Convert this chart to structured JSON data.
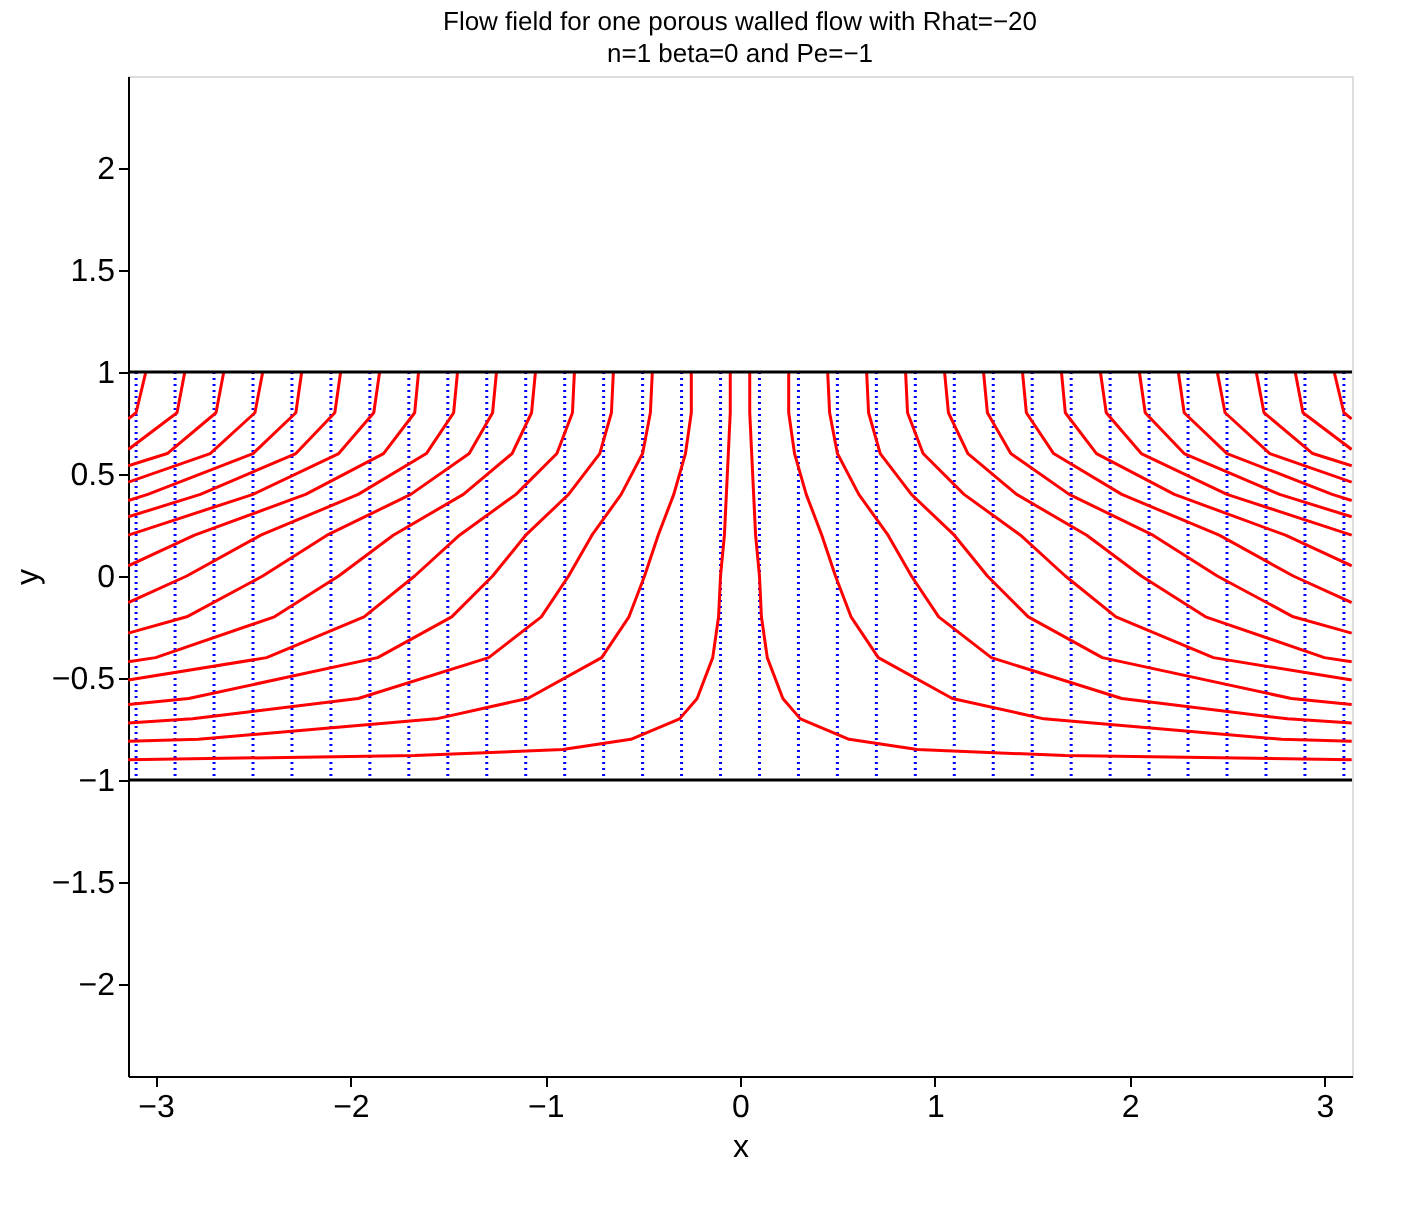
{
  "chart_data": {
    "type": "line",
    "title": "Flow field for one porous walled flow with Rhat=−20",
    "subtitle": "n=1 beta=0 and Pe=−1",
    "xlabel": "x",
    "ylabel": "y",
    "xlim": [
      -3.1416,
      3.1416
    ],
    "ylim": [
      -2.45,
      2.45
    ],
    "xticks": [
      -3,
      -2,
      -1,
      0,
      1,
      2,
      3
    ],
    "yticks": [
      -2,
      -1.5,
      -1,
      -0.5,
      0,
      0.5,
      1,
      1.5,
      2
    ],
    "series": [
      {
        "color": "#0000ff",
        "line_style": "dotted",
        "x": [
          -3.1,
          -3.1
        ],
        "values": [
          1,
          -1
        ]
      },
      {
        "color": "#0000ff",
        "line_style": "dotted",
        "x": [
          -2.9,
          -2.9
        ],
        "values": [
          1,
          -1
        ]
      },
      {
        "color": "#0000ff",
        "line_style": "dotted",
        "x": [
          -2.7,
          -2.7
        ],
        "values": [
          1,
          -1
        ]
      },
      {
        "color": "#0000ff",
        "line_style": "dotted",
        "x": [
          -2.5,
          -2.5
        ],
        "values": [
          1,
          -1
        ]
      },
      {
        "color": "#0000ff",
        "line_style": "dotted",
        "x": [
          -2.3,
          -2.3
        ],
        "values": [
          1,
          -1
        ]
      },
      {
        "color": "#0000ff",
        "line_style": "dotted",
        "x": [
          -2.1,
          -2.1
        ],
        "values": [
          1,
          -1
        ]
      },
      {
        "color": "#0000ff",
        "line_style": "dotted",
        "x": [
          -1.9,
          -1.9
        ],
        "values": [
          1,
          -1
        ]
      },
      {
        "color": "#0000ff",
        "line_style": "dotted",
        "x": [
          -1.7,
          -1.7
        ],
        "values": [
          1,
          -1
        ]
      },
      {
        "color": "#0000ff",
        "line_style": "dotted",
        "x": [
          -1.5,
          -1.5
        ],
        "values": [
          1,
          -1
        ]
      },
      {
        "color": "#0000ff",
        "line_style": "dotted",
        "x": [
          -1.3,
          -1.3
        ],
        "values": [
          1,
          -1
        ]
      },
      {
        "color": "#0000ff",
        "line_style": "dotted",
        "x": [
          -1.1,
          -1.1
        ],
        "values": [
          1,
          -1
        ]
      },
      {
        "color": "#0000ff",
        "line_style": "dotted",
        "x": [
          -0.9,
          -0.9
        ],
        "values": [
          1,
          -1
        ]
      },
      {
        "color": "#0000ff",
        "line_style": "dotted",
        "x": [
          -0.7,
          -0.7
        ],
        "values": [
          1,
          -1
        ]
      },
      {
        "color": "#0000ff",
        "line_style": "dotted",
        "x": [
          -0.5,
          -0.5
        ],
        "values": [
          1,
          -1
        ]
      },
      {
        "color": "#0000ff",
        "line_style": "dotted",
        "x": [
          -0.3,
          -0.3
        ],
        "values": [
          1,
          -1
        ]
      },
      {
        "color": "#0000ff",
        "line_style": "dotted",
        "x": [
          -0.1,
          -0.1
        ],
        "values": [
          1,
          -1
        ]
      },
      {
        "color": "#0000ff",
        "line_style": "dotted",
        "x": [
          0.1,
          0.1
        ],
        "values": [
          1,
          -1
        ]
      },
      {
        "color": "#0000ff",
        "line_style": "dotted",
        "x": [
          0.3,
          0.3
        ],
        "values": [
          1,
          -1
        ]
      },
      {
        "color": "#0000ff",
        "line_style": "dotted",
        "x": [
          0.5,
          0.5
        ],
        "values": [
          1,
          -1
        ]
      },
      {
        "color": "#0000ff",
        "line_style": "dotted",
        "x": [
          0.7,
          0.7
        ],
        "values": [
          1,
          -1
        ]
      },
      {
        "color": "#0000ff",
        "line_style": "dotted",
        "x": [
          0.9,
          0.9
        ],
        "values": [
          1,
          -1
        ]
      },
      {
        "color": "#0000ff",
        "line_style": "dotted",
        "x": [
          1.1,
          1.1
        ],
        "values": [
          1,
          -1
        ]
      },
      {
        "color": "#0000ff",
        "line_style": "dotted",
        "x": [
          1.3,
          1.3
        ],
        "values": [
          1,
          -1
        ]
      },
      {
        "color": "#0000ff",
        "line_style": "dotted",
        "x": [
          1.5,
          1.5
        ],
        "values": [
          1,
          -1
        ]
      },
      {
        "color": "#0000ff",
        "line_style": "dotted",
        "x": [
          1.7,
          1.7
        ],
        "values": [
          1,
          -1
        ]
      },
      {
        "color": "#0000ff",
        "line_style": "dotted",
        "x": [
          1.9,
          1.9
        ],
        "values": [
          1,
          -1
        ]
      },
      {
        "color": "#0000ff",
        "line_style": "dotted",
        "x": [
          2.1,
          2.1
        ],
        "values": [
          1,
          -1
        ]
      },
      {
        "color": "#0000ff",
        "line_style": "dotted",
        "x": [
          2.3,
          2.3
        ],
        "values": [
          1,
          -1
        ]
      },
      {
        "color": "#0000ff",
        "line_style": "dotted",
        "x": [
          2.5,
          2.5
        ],
        "values": [
          1,
          -1
        ]
      },
      {
        "color": "#0000ff",
        "line_style": "dotted",
        "x": [
          2.7,
          2.7
        ],
        "values": [
          1,
          -1
        ]
      },
      {
        "color": "#0000ff",
        "line_style": "dotted",
        "x": [
          2.9,
          2.9
        ],
        "values": [
          1,
          -1
        ]
      },
      {
        "color": "#0000ff",
        "line_style": "dotted",
        "x": [
          3.1,
          3.1
        ],
        "values": [
          1,
          -1
        ]
      },
      {
        "color": "#ff0000",
        "line_style": "solid",
        "x": [
          0.05,
          0.05,
          0.06,
          0.07,
          0.08,
          0.1,
          0.11,
          0.14,
          0.22,
          0.31,
          0.56,
          0.91,
          1.67,
          3.14
        ],
        "values": [
          1,
          0.8,
          0.6,
          0.4,
          0.2,
          0,
          -0.2,
          -0.4,
          -0.6,
          -0.7,
          -0.8,
          -0.85,
          -0.88,
          -0.9
        ]
      },
      {
        "color": "#ff0000",
        "line_style": "solid",
        "x": [
          0.25,
          0.25,
          0.28,
          0.34,
          0.42,
          0.49,
          0.57,
          0.71,
          1.09,
          1.56,
          2.78,
          3.14
        ],
        "values": [
          1,
          0.8,
          0.6,
          0.4,
          0.2,
          0,
          -0.2,
          -0.4,
          -0.6,
          -0.7,
          -0.8,
          -0.81
        ]
      },
      {
        "color": "#ff0000",
        "line_style": "solid",
        "x": [
          0.45,
          0.46,
          0.5,
          0.61,
          0.76,
          0.88,
          1.02,
          1.29,
          1.96,
          2.81,
          3.14
        ],
        "values": [
          1,
          0.8,
          0.6,
          0.4,
          0.2,
          0,
          -0.2,
          -0.4,
          -0.6,
          -0.7,
          -0.72
        ]
      },
      {
        "color": "#ff0000",
        "line_style": "solid",
        "x": [
          0.65,
          0.66,
          0.72,
          0.88,
          1.1,
          1.27,
          1.48,
          1.86,
          2.83,
          3.14
        ],
        "values": [
          1,
          0.8,
          0.6,
          0.4,
          0.2,
          0,
          -0.2,
          -0.4,
          -0.6,
          -0.63
        ]
      },
      {
        "color": "#ff0000",
        "line_style": "solid",
        "x": [
          0.85,
          0.86,
          0.94,
          1.15,
          1.44,
          1.67,
          1.93,
          2.43,
          3.14
        ],
        "values": [
          1,
          0.8,
          0.6,
          0.4,
          0.2,
          0,
          -0.2,
          -0.4,
          -0.51
        ]
      },
      {
        "color": "#ff0000",
        "line_style": "solid",
        "x": [
          1.05,
          1.07,
          1.17,
          1.42,
          1.78,
          2.06,
          2.39,
          3.0,
          3.14
        ],
        "values": [
          1,
          0.8,
          0.6,
          0.4,
          0.2,
          0,
          -0.2,
          -0.4,
          -0.42
        ]
      },
      {
        "color": "#ff0000",
        "line_style": "solid",
        "x": [
          1.25,
          1.27,
          1.39,
          1.69,
          2.12,
          2.45,
          2.84,
          3.14
        ],
        "values": [
          1,
          0.8,
          0.6,
          0.4,
          0.2,
          0,
          -0.2,
          -0.28
        ]
      },
      {
        "color": "#ff0000",
        "line_style": "solid",
        "x": [
          1.45,
          1.47,
          1.61,
          1.96,
          2.46,
          2.84,
          3.14
        ],
        "values": [
          1,
          0.8,
          0.6,
          0.4,
          0.2,
          0,
          -0.13
        ]
      },
      {
        "color": "#ff0000",
        "line_style": "solid",
        "x": [
          1.65,
          1.67,
          1.83,
          2.23,
          2.8,
          3.14
        ],
        "values": [
          1,
          0.8,
          0.6,
          0.4,
          0.2,
          0.05
        ]
      },
      {
        "color": "#ff0000",
        "line_style": "solid",
        "x": [
          1.85,
          1.88,
          2.06,
          2.5,
          3.14
        ],
        "values": [
          1,
          0.8,
          0.6,
          0.4,
          0.2
        ]
      },
      {
        "color": "#ff0000",
        "line_style": "solid",
        "x": [
          2.05,
          2.08,
          2.28,
          2.77,
          3.14
        ],
        "values": [
          1,
          0.8,
          0.6,
          0.4,
          0.29
        ]
      },
      {
        "color": "#ff0000",
        "line_style": "solid",
        "x": [
          2.25,
          2.28,
          2.5,
          3.04,
          3.14
        ],
        "values": [
          1,
          0.8,
          0.6,
          0.4,
          0.37
        ]
      },
      {
        "color": "#ff0000",
        "line_style": "solid",
        "x": [
          2.45,
          2.49,
          2.72,
          3.14
        ],
        "values": [
          1,
          0.8,
          0.6,
          0.46
        ]
      },
      {
        "color": "#ff0000",
        "line_style": "solid",
        "x": [
          2.65,
          2.69,
          2.94,
          3.14
        ],
        "values": [
          1,
          0.8,
          0.6,
          0.54
        ]
      },
      {
        "color": "#ff0000",
        "line_style": "solid",
        "x": [
          2.85,
          2.89,
          3.14
        ],
        "values": [
          1,
          0.8,
          0.62
        ]
      },
      {
        "color": "#ff0000",
        "line_style": "solid",
        "x": [
          3.05,
          3.1,
          3.14
        ],
        "values": [
          1,
          0.8,
          0.77
        ]
      },
      {
        "color": "#ff0000",
        "line_style": "solid",
        "x": [
          -0.05,
          -0.05,
          -0.06,
          -0.07,
          -0.08,
          -0.1,
          -0.11,
          -0.14,
          -0.22,
          -0.31,
          -0.56,
          -0.91,
          -1.67,
          -3.14
        ],
        "values": [
          1,
          0.8,
          0.6,
          0.4,
          0.2,
          0,
          -0.2,
          -0.4,
          -0.6,
          -0.7,
          -0.8,
          -0.85,
          -0.88,
          -0.9
        ]
      },
      {
        "color": "#ff0000",
        "line_style": "solid",
        "x": [
          -0.25,
          -0.25,
          -0.28,
          -0.34,
          -0.42,
          -0.49,
          -0.57,
          -0.71,
          -1.09,
          -1.56,
          -2.78,
          -3.14
        ],
        "values": [
          1,
          0.8,
          0.6,
          0.4,
          0.2,
          0,
          -0.2,
          -0.4,
          -0.6,
          -0.7,
          -0.8,
          -0.81
        ]
      },
      {
        "color": "#ff0000",
        "line_style": "solid",
        "x": [
          -0.45,
          -0.46,
          -0.5,
          -0.61,
          -0.76,
          -0.88,
          -1.02,
          -1.29,
          -1.96,
          -2.81,
          -3.14
        ],
        "values": [
          1,
          0.8,
          0.6,
          0.4,
          0.2,
          0,
          -0.2,
          -0.4,
          -0.6,
          -0.7,
          -0.72
        ]
      },
      {
        "color": "#ff0000",
        "line_style": "solid",
        "x": [
          -0.65,
          -0.66,
          -0.72,
          -0.88,
          -1.1,
          -1.27,
          -1.48,
          -1.86,
          -2.83,
          -3.14
        ],
        "values": [
          1,
          0.8,
          0.6,
          0.4,
          0.2,
          0,
          -0.2,
          -0.4,
          -0.6,
          -0.63
        ]
      },
      {
        "color": "#ff0000",
        "line_style": "solid",
        "x": [
          -0.85,
          -0.86,
          -0.94,
          -1.15,
          -1.44,
          -1.67,
          -1.93,
          -2.43,
          -3.14
        ],
        "values": [
          1,
          0.8,
          0.6,
          0.4,
          0.2,
          0,
          -0.2,
          -0.4,
          -0.51
        ]
      },
      {
        "color": "#ff0000",
        "line_style": "solid",
        "x": [
          -1.05,
          -1.07,
          -1.17,
          -1.42,
          -1.78,
          -2.06,
          -2.39,
          -3.0,
          -3.14
        ],
        "values": [
          1,
          0.8,
          0.6,
          0.4,
          0.2,
          0,
          -0.2,
          -0.4,
          -0.42
        ]
      },
      {
        "color": "#ff0000",
        "line_style": "solid",
        "x": [
          -1.25,
          -1.27,
          -1.39,
          -1.69,
          -2.12,
          -2.45,
          -2.84,
          -3.14
        ],
        "values": [
          1,
          0.8,
          0.6,
          0.4,
          0.2,
          0,
          -0.2,
          -0.28
        ]
      },
      {
        "color": "#ff0000",
        "line_style": "solid",
        "x": [
          -1.45,
          -1.47,
          -1.61,
          -1.96,
          -2.46,
          -2.84,
          -3.14
        ],
        "values": [
          1,
          0.8,
          0.6,
          0.4,
          0.2,
          0,
          -0.13
        ]
      },
      {
        "color": "#ff0000",
        "line_style": "solid",
        "x": [
          -1.65,
          -1.67,
          -1.83,
          -2.23,
          -2.8,
          -3.14
        ],
        "values": [
          1,
          0.8,
          0.6,
          0.4,
          0.2,
          0.05
        ]
      },
      {
        "color": "#ff0000",
        "line_style": "solid",
        "x": [
          -1.85,
          -1.88,
          -2.06,
          -2.5,
          -3.14
        ],
        "values": [
          1,
          0.8,
          0.6,
          0.4,
          0.2
        ]
      },
      {
        "color": "#ff0000",
        "line_style": "solid",
        "x": [
          -2.05,
          -2.08,
          -2.28,
          -2.77,
          -3.14
        ],
        "values": [
          1,
          0.8,
          0.6,
          0.4,
          0.29
        ]
      },
      {
        "color": "#ff0000",
        "line_style": "solid",
        "x": [
          -2.25,
          -2.28,
          -2.5,
          -3.04,
          -3.14
        ],
        "values": [
          1,
          0.8,
          0.6,
          0.4,
          0.37
        ]
      },
      {
        "color": "#ff0000",
        "line_style": "solid",
        "x": [
          -2.45,
          -2.49,
          -2.72,
          -3.14
        ],
        "values": [
          1,
          0.8,
          0.6,
          0.46
        ]
      },
      {
        "color": "#ff0000",
        "line_style": "solid",
        "x": [
          -2.65,
          -2.69,
          -2.94,
          -3.14
        ],
        "values": [
          1,
          0.8,
          0.6,
          0.54
        ]
      },
      {
        "color": "#ff0000",
        "line_style": "solid",
        "x": [
          -2.85,
          -2.89,
          -3.14
        ],
        "values": [
          1,
          0.8,
          0.62
        ]
      },
      {
        "color": "#ff0000",
        "line_style": "solid",
        "x": [
          -3.05,
          -3.1,
          -3.14
        ],
        "values": [
          1,
          0.8,
          0.77
        ]
      },
      {
        "color": "#000000",
        "line_style": "solid",
        "x": [
          -3.1416,
          3.1416
        ],
        "values": [
          1,
          1
        ]
      },
      {
        "color": "#000000",
        "line_style": "solid",
        "x": [
          -3.1416,
          3.1416
        ],
        "values": [
          -1,
          -1
        ]
      }
    ]
  }
}
